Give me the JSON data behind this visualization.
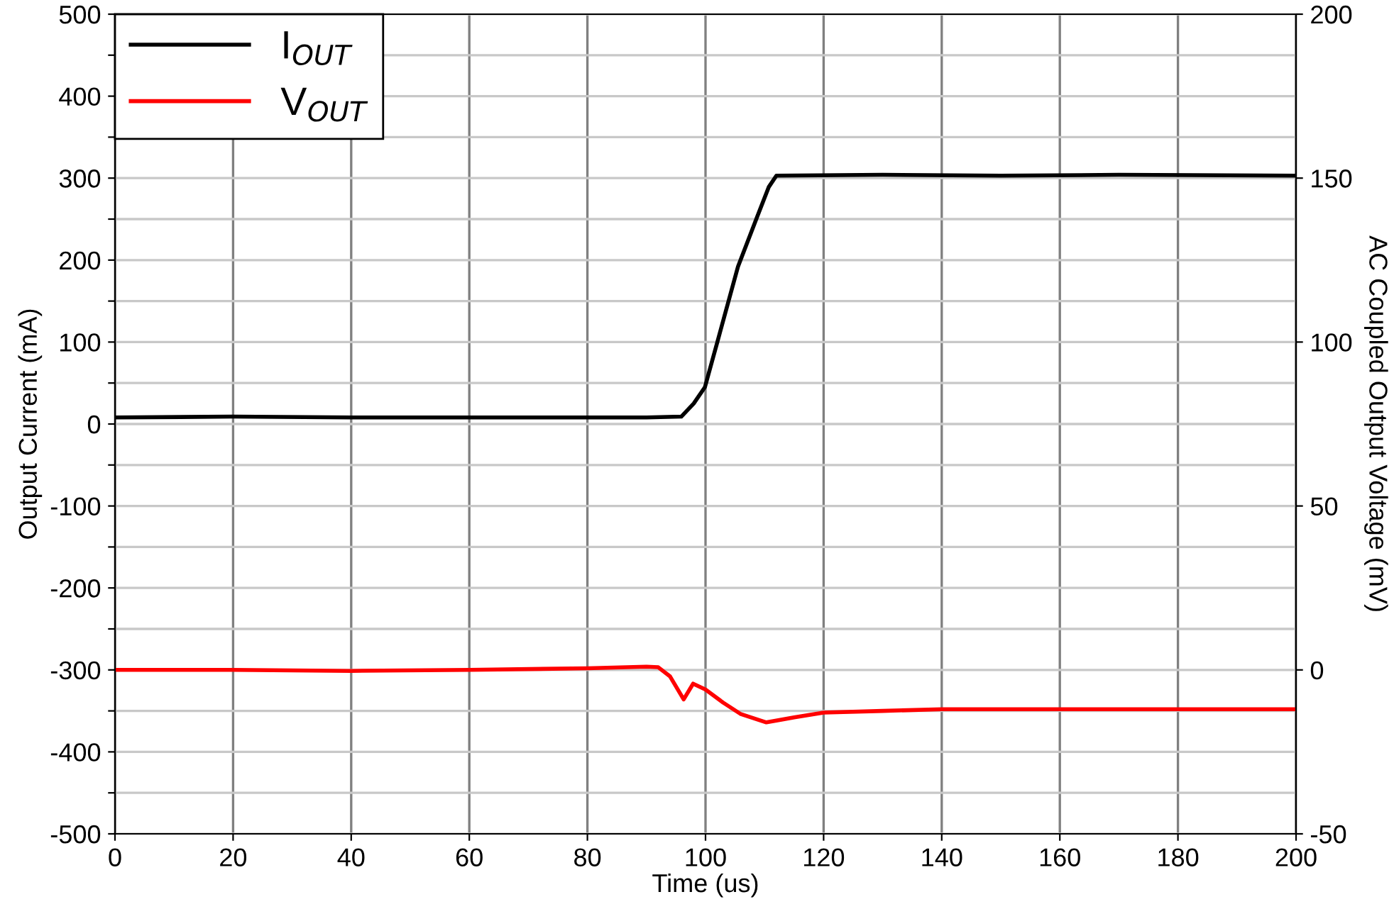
{
  "chart_data": {
    "type": "line",
    "xlabel": "Time (us)",
    "ylabel": "Output Current (mA)",
    "y2label": "AC Coupled Output Voltage (mV)",
    "xlim": [
      0,
      200
    ],
    "xticks": [
      0,
      20,
      40,
      60,
      80,
      100,
      120,
      140,
      160,
      180,
      200
    ],
    "ylim": [
      -500,
      500
    ],
    "yticks": [
      -500,
      {
        "value": -450,
        "label": null
      },
      -400,
      {
        "value": -350,
        "label": null
      },
      -300,
      {
        "value": -250,
        "label": null
      },
      -200,
      {
        "value": -150,
        "label": null
      },
      -100,
      {
        "value": -50,
        "label": null
      },
      0,
      {
        "value": 50,
        "label": null
      },
      100,
      {
        "value": 150,
        "label": null
      },
      200,
      {
        "value": 250,
        "label": null
      },
      300,
      {
        "value": 350,
        "label": null
      },
      400,
      {
        "value": 450,
        "label": null
      },
      500
    ],
    "y2lim": [
      -50,
      200
    ],
    "y2ticks": [
      -50,
      0,
      50,
      100,
      150,
      200
    ],
    "grid": true,
    "legend": "top left",
    "line_style": "solid",
    "marker": "none",
    "series": [
      {
        "name": "I$_{OUT}$",
        "color": "#000000",
        "x": [
          0,
          20,
          40,
          60,
          80,
          90,
          95.9,
          98,
          99.9,
          102,
          105.5,
          108.7,
          110.7,
          112,
          130,
          150,
          170,
          200
        ],
        "values": [
          8,
          9,
          8,
          8,
          8,
          8,
          9,
          25,
          45,
          100,
          192,
          252,
          289,
          303,
          304,
          303,
          304,
          303
        ]
      },
      {
        "name": "V$_{OUT}$",
        "color": "#ff0000",
        "axis": "y2",
        "x": [
          0,
          20,
          40,
          60,
          80,
          90,
          92,
          94,
          96.3,
          97.9,
          100,
          103,
          106,
          110.3,
          115,
          120,
          130,
          140,
          160,
          180,
          200
        ],
        "values": [
          0,
          0,
          -0.3,
          0,
          0.5,
          1,
          0.8,
          -2,
          -9,
          -4.2,
          -6,
          -10,
          -13.5,
          -16,
          -14.5,
          -13,
          -12.5,
          -12,
          -12,
          -12,
          -12
        ]
      }
    ]
  }
}
